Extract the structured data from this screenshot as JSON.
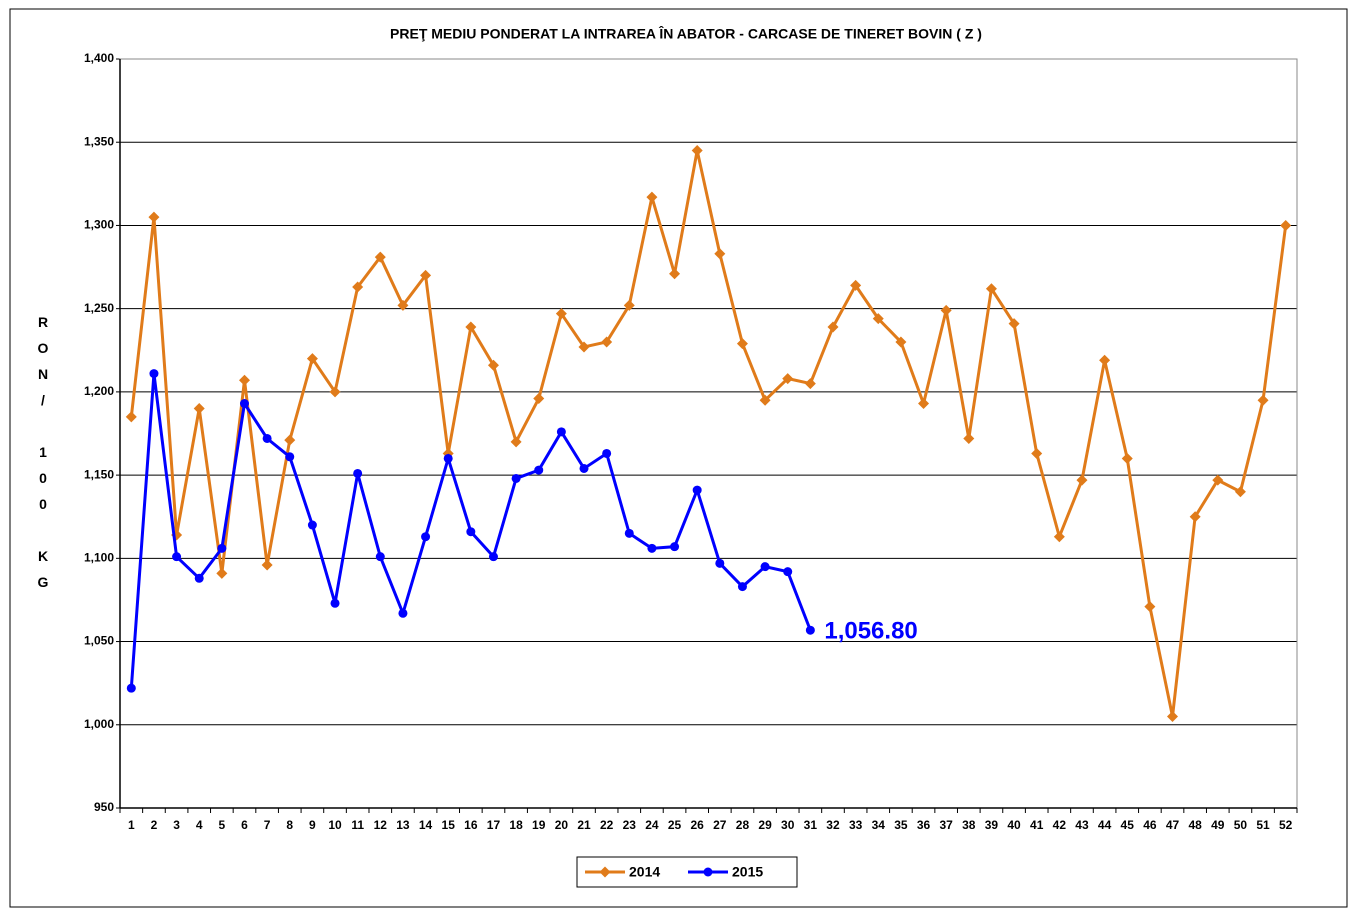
{
  "chart_data": {
    "type": "line",
    "title": "PREŢ MEDIU PONDERAT LA INTRAREA ÎN ABATOR - CARCASE DE TINERET BOVIN ( Z )",
    "y_label": "RON/ 100 KG",
    "categories": [
      "1",
      "2",
      "3",
      "4",
      "5",
      "6",
      "7",
      "8",
      "9",
      "10",
      "11",
      "12",
      "13",
      "14",
      "15",
      "16",
      "17",
      "18",
      "19",
      "20",
      "21",
      "22",
      "23",
      "24",
      "25",
      "26",
      "27",
      "28",
      "29",
      "30",
      "31",
      "32",
      "33",
      "34",
      "35",
      "36",
      "37",
      "38",
      "39",
      "40",
      "41",
      "42",
      "43",
      "44",
      "45",
      "46",
      "47",
      "48",
      "49",
      "50",
      "51",
      "52"
    ],
    "series": [
      {
        "name": "2014",
        "color": "#e07b1a",
        "marker": "diamond",
        "values": [
          1185,
          1305,
          1114,
          1190,
          1091,
          1207,
          1096,
          1171,
          1220,
          1200,
          1263,
          1281,
          1252,
          1270,
          1163,
          1239,
          1216,
          1170,
          1196,
          1247,
          1227,
          1230,
          1252,
          1317,
          1271,
          1345,
          1283,
          1229,
          1195,
          1208,
          1205,
          1239,
          1264,
          1244,
          1230,
          1193,
          1249,
          1172,
          1262,
          1241,
          1163,
          1113,
          1147,
          1219,
          1160,
          1071,
          1005,
          1125,
          1147,
          1140,
          1195,
          1300
        ]
      },
      {
        "name": "2015",
        "color": "#0000ff",
        "marker": "circle",
        "values": [
          1022,
          1211,
          1101,
          1088,
          1106,
          1193,
          1172,
          1161,
          1120,
          1073,
          1151,
          1101,
          1067,
          1113,
          1160,
          1116,
          1101,
          1148,
          1153,
          1176,
          1154,
          1163,
          1115,
          1106,
          1107,
          1141,
          1097,
          1083,
          1095,
          1092,
          1056.8,
          null,
          null,
          null,
          null,
          null,
          null,
          null,
          null,
          null,
          null,
          null,
          null,
          null,
          null,
          null,
          null,
          null,
          null,
          null,
          null,
          null
        ],
        "value_labels": [
          null,
          null,
          null,
          null,
          null,
          null,
          null,
          null,
          null,
          null,
          null,
          null,
          null,
          null,
          null,
          null,
          null,
          null,
          null,
          null,
          null,
          null,
          null,
          null,
          null,
          null,
          null,
          null,
          null,
          null,
          "1,056.80",
          null,
          null,
          null,
          null,
          null,
          null,
          null,
          null,
          null,
          null,
          null,
          null,
          null,
          null,
          null,
          null,
          null,
          null,
          null,
          null,
          null
        ]
      }
    ],
    "ylim": [
      950,
      1400
    ],
    "yticks": [
      950,
      {
        "value": 1000,
        "label": "1,000"
      },
      {
        "value": 1050,
        "label": "1,050"
      },
      {
        "value": 1100,
        "label": "1,100"
      },
      {
        "value": 1150,
        "label": "1,150"
      },
      {
        "value": 1200,
        "label": "1,200"
      },
      {
        "value": 1250,
        "label": "1,250"
      },
      {
        "value": 1300,
        "label": "1,300"
      },
      {
        "value": 1350,
        "label": "1,350"
      },
      {
        "value": 1400,
        "label": "1,400"
      }
    ],
    "grid": true,
    "legend": "bottom"
  }
}
